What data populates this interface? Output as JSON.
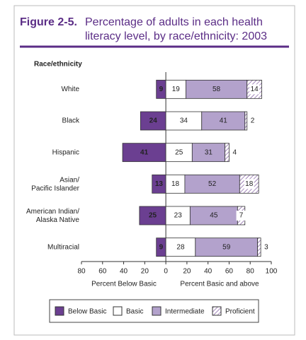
{
  "chart_data": {
    "type": "diverging-bar",
    "figure_label": "Figure 2-5.",
    "title": "Percentage of adults in each health\nliteracy level, by race/ethnicity: 2003",
    "ylabel": "Race/ethnicity",
    "xlabel_left": "Percent Below Basic",
    "xlabel_right": "Percent Basic and above",
    "categories": [
      "White",
      "Black",
      "Hispanic",
      "Asian/\nPacific Islander",
      "American Indian/\nAlaska Native",
      "Multiracial"
    ],
    "series": [
      {
        "name": "Below Basic",
        "color": "#6b3f91",
        "values": [
          -9,
          -24,
          -41,
          -13,
          -25,
          -9
        ],
        "value_labels": [
          "9",
          "24",
          "41",
          "13",
          "25",
          "9"
        ]
      },
      {
        "name": "Basic",
        "color": "#ffffff",
        "values": [
          19,
          34,
          25,
          18,
          23,
          28
        ]
      },
      {
        "name": "Intermediate",
        "color": "#b3a2cc",
        "values": [
          58,
          41,
          31,
          52,
          45,
          59
        ]
      },
      {
        "name": "Proficient",
        "color": "#ffffff",
        "hatch": true,
        "values": [
          14,
          2,
          4,
          18,
          7,
          3
        ]
      }
    ],
    "xlim": [
      -80,
      100
    ],
    "xticks": [
      {
        "value": -80,
        "label": "80"
      },
      {
        "value": -60,
        "label": "60"
      },
      {
        "value": -40,
        "label": "40"
      },
      {
        "value": -20,
        "label": "20"
      },
      0,
      20,
      40,
      60,
      80,
      100
    ],
    "grid": false
  }
}
